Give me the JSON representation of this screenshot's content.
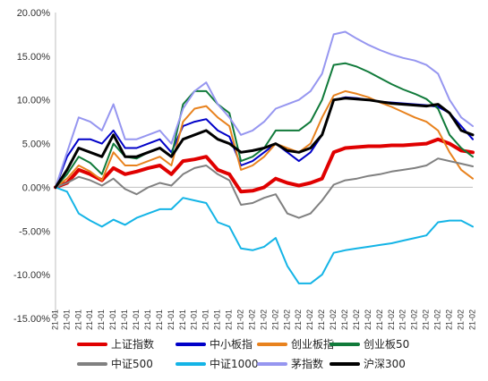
{
  "chart_data": {
    "type": "line",
    "title": "",
    "xlabel": "",
    "ylabel": "",
    "ylim": [
      -0.15,
      0.2
    ],
    "y_ticks": [
      "20.00%",
      "15.00%",
      "10.00%",
      "5.00%",
      "0.00%",
      "-5.00%",
      "-10.00%",
      "-15.00%"
    ],
    "y_tick_values": [
      0.2,
      0.15,
      0.1,
      0.05,
      0.0,
      -0.05,
      -0.1,
      -0.15
    ],
    "x_tick_labels": [
      "21-01",
      "21-01",
      "21-01",
      "21-01",
      "21-01",
      "21-01",
      "21-01",
      "21-01",
      "21-01",
      "21-01",
      "21-01",
      "21-01",
      "21-01",
      "21-01",
      "21-01",
      "21-01",
      "21-02",
      "21-02",
      "21-02",
      "21-02",
      "21-02",
      "21-02",
      "21-02",
      "21-02",
      "21-02",
      "21-02",
      "21-02",
      "21-02",
      "21-02",
      "21-02",
      "21-02",
      "21-02",
      "21-02",
      "21-02",
      "21-02",
      "21-02",
      "21-02"
    ],
    "x": [
      0,
      1,
      2,
      3,
      4,
      5,
      6,
      7,
      8,
      9,
      10,
      11,
      12,
      13,
      14,
      15,
      16,
      17,
      18,
      19,
      20,
      21,
      22,
      23,
      24,
      25,
      26,
      27,
      28,
      29,
      30,
      31,
      32,
      33,
      34,
      35,
      36
    ],
    "legend_position": "bottom",
    "grid": false,
    "series": [
      {
        "name": "上证指数",
        "color": "#e00000",
        "width": 4,
        "values": [
          0.0,
          0.005,
          0.02,
          0.015,
          0.008,
          0.022,
          0.015,
          0.018,
          0.022,
          0.025,
          0.015,
          0.03,
          0.032,
          0.035,
          0.02,
          0.015,
          -0.005,
          -0.004,
          0.0,
          0.01,
          0.005,
          0.002,
          0.005,
          0.01,
          0.04,
          0.045,
          0.046,
          0.047,
          0.047,
          0.048,
          0.048,
          0.049,
          0.05,
          0.055,
          0.05,
          0.042,
          0.04
        ]
      },
      {
        "name": "中小板指",
        "color": "#0000c8",
        "width": 2,
        "values": [
          0.0,
          0.035,
          0.055,
          0.055,
          0.05,
          0.065,
          0.045,
          0.045,
          0.05,
          0.055,
          0.04,
          0.07,
          0.075,
          0.078,
          0.065,
          0.058,
          0.025,
          0.03,
          0.04,
          0.05,
          0.04,
          0.03,
          0.04,
          0.06,
          0.1,
          0.103,
          0.102,
          0.1,
          0.098,
          0.097,
          0.096,
          0.095,
          0.094,
          0.092,
          0.085,
          0.07,
          0.055
        ]
      },
      {
        "name": "创业板指",
        "color": "#e8821e",
        "width": 2,
        "values": [
          0.0,
          0.01,
          0.025,
          0.018,
          0.008,
          0.04,
          0.025,
          0.025,
          0.03,
          0.035,
          0.025,
          0.075,
          0.09,
          0.093,
          0.08,
          0.07,
          0.02,
          0.025,
          0.035,
          0.05,
          0.045,
          0.04,
          0.05,
          0.08,
          0.105,
          0.11,
          0.107,
          0.103,
          0.097,
          0.092,
          0.086,
          0.08,
          0.075,
          0.065,
          0.04,
          0.02,
          0.01
        ]
      },
      {
        "name": "创业板50",
        "color": "#107a3a",
        "width": 2,
        "values": [
          0.0,
          0.015,
          0.035,
          0.028,
          0.015,
          0.05,
          0.035,
          0.033,
          0.04,
          0.045,
          0.035,
          0.095,
          0.11,
          0.11,
          0.095,
          0.085,
          0.03,
          0.035,
          0.045,
          0.065,
          0.065,
          0.065,
          0.075,
          0.1,
          0.14,
          0.142,
          0.138,
          0.132,
          0.125,
          0.118,
          0.112,
          0.107,
          0.101,
          0.09,
          0.06,
          0.045,
          0.035
        ]
      },
      {
        "name": "中证500",
        "color": "#808080",
        "width": 2,
        "values": [
          0.0,
          0.005,
          0.012,
          0.008,
          0.002,
          0.01,
          -0.002,
          -0.008,
          0.0,
          0.005,
          0.002,
          0.015,
          0.022,
          0.025,
          0.015,
          0.008,
          -0.02,
          -0.018,
          -0.012,
          -0.008,
          -0.03,
          -0.035,
          -0.03,
          -0.015,
          0.003,
          0.008,
          0.01,
          0.013,
          0.015,
          0.018,
          0.02,
          0.022,
          0.025,
          0.033,
          0.03,
          0.027,
          0.024
        ]
      },
      {
        "name": "中证1000",
        "color": "#14b4e6",
        "width": 2,
        "values": [
          0.0,
          -0.005,
          -0.03,
          -0.038,
          -0.045,
          -0.037,
          -0.043,
          -0.035,
          -0.03,
          -0.025,
          -0.025,
          -0.012,
          -0.015,
          -0.018,
          -0.04,
          -0.045,
          -0.07,
          -0.072,
          -0.068,
          -0.058,
          -0.09,
          -0.11,
          -0.11,
          -0.1,
          -0.075,
          -0.072,
          -0.07,
          -0.068,
          -0.066,
          -0.064,
          -0.061,
          -0.058,
          -0.055,
          -0.04,
          -0.038,
          -0.038,
          -0.045
        ]
      },
      {
        "name": "茅指数",
        "color": "#9696f0",
        "width": 2,
        "values": [
          0.0,
          0.04,
          0.08,
          0.075,
          0.065,
          0.095,
          0.055,
          0.055,
          0.06,
          0.065,
          0.05,
          0.09,
          0.11,
          0.12,
          0.095,
          0.08,
          0.06,
          0.065,
          0.075,
          0.09,
          0.095,
          0.1,
          0.11,
          0.13,
          0.175,
          0.178,
          0.17,
          0.163,
          0.157,
          0.152,
          0.148,
          0.145,
          0.14,
          0.13,
          0.1,
          0.08,
          0.07
        ]
      },
      {
        "name": "沪深300",
        "color": "#000000",
        "width": 3,
        "values": [
          0.0,
          0.02,
          0.045,
          0.04,
          0.035,
          0.06,
          0.035,
          0.035,
          0.04,
          0.045,
          0.035,
          0.055,
          0.06,
          0.065,
          0.055,
          0.05,
          0.04,
          0.042,
          0.045,
          0.05,
          0.042,
          0.04,
          0.045,
          0.06,
          0.1,
          0.102,
          0.101,
          0.1,
          0.098,
          0.096,
          0.095,
          0.094,
          0.093,
          0.095,
          0.085,
          0.065,
          0.06
        ]
      }
    ]
  }
}
